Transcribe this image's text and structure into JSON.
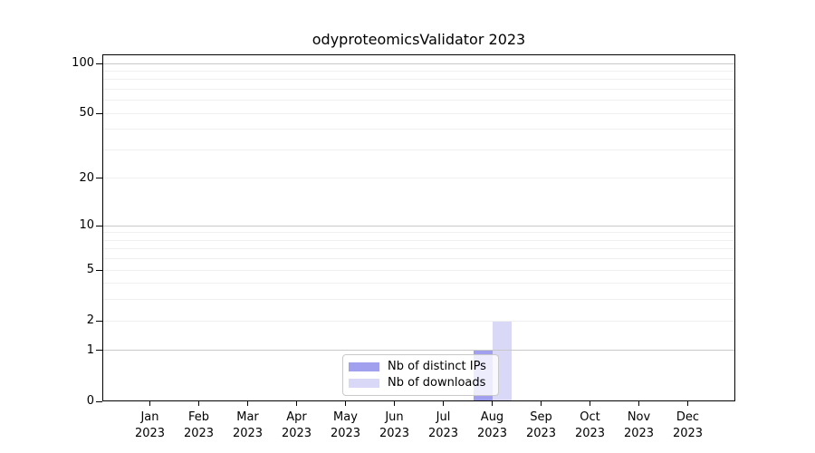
{
  "figure": {
    "title": "odyproteomicsValidator 2023"
  },
  "legend": {
    "items": [
      {
        "label": "Nb of distinct IPs",
        "color": "#a0a0ee"
      },
      {
        "label": "Nb of downloads",
        "color": "#d9d9f7"
      }
    ]
  },
  "chart_data": {
    "type": "bar",
    "title": "odyproteomicsValidator 2023",
    "categories": [
      "Jan 2023",
      "Feb 2023",
      "Mar 2023",
      "Apr 2023",
      "May 2023",
      "Jun 2023",
      "Jul 2023",
      "Aug 2023",
      "Sep 2023",
      "Oct 2023",
      "Nov 2023",
      "Dec 2023"
    ],
    "series": [
      {
        "name": "Nb of distinct IPs",
        "color": "#a0a0ee",
        "values": [
          0,
          0,
          0,
          0,
          0,
          0,
          0,
          1,
          0,
          0,
          0,
          0
        ]
      },
      {
        "name": "Nb of downloads",
        "color": "#d9d9f7",
        "values": [
          0,
          0,
          0,
          0,
          0,
          0,
          0,
          2,
          0,
          0,
          0,
          0
        ]
      }
    ],
    "xlabel": "",
    "ylabel": "",
    "yscale": "log1p",
    "ylim": [
      0,
      113
    ],
    "yticks": [
      100,
      50,
      20,
      10,
      5,
      2,
      1,
      0
    ],
    "grid": {
      "major_lines": [
        1,
        10,
        100
      ],
      "minor_lines": [
        2,
        3,
        4,
        5,
        6,
        7,
        8,
        9,
        20,
        30,
        40,
        50,
        60,
        70,
        80,
        90
      ],
      "major_color": "#c8c8c8",
      "minor_color": "#efefef"
    },
    "legend_position": "inside-bottom-center",
    "axis_color": "#000000"
  }
}
